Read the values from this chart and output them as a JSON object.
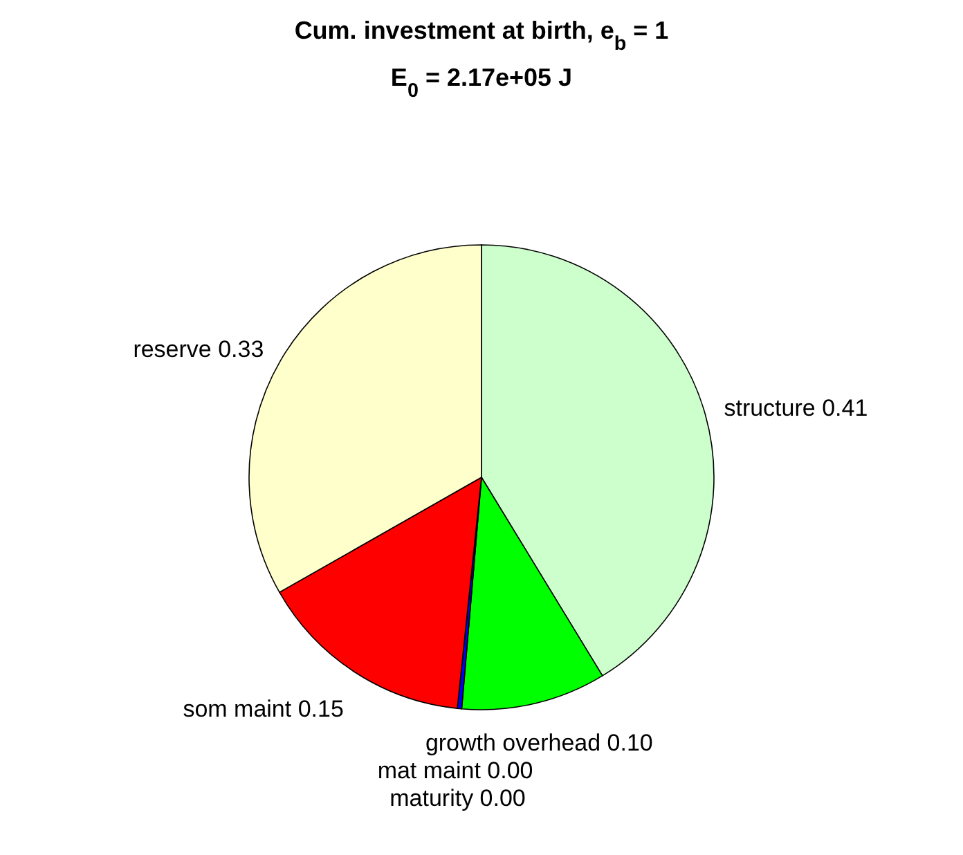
{
  "chart_data": {
    "type": "pie",
    "title": "Cum. investment at birth, e$_{b}$ = 1",
    "subtitle": "E$_{0}$ = 2.17e+05 J",
    "categories": [
      "structure",
      "growth overhead",
      "maturity",
      "mat maint",
      "som maint",
      "reserve"
    ],
    "values": [
      0.41,
      0.1,
      0.003,
      0.0,
      0.15,
      0.33
    ],
    "value_labels": [
      "0.41",
      "0.10",
      "0.00",
      "0.00",
      "0.15",
      "0.33"
    ],
    "colors": [
      "#ccffcc",
      "#00ff00",
      "#0000ff",
      "#ff00ff",
      "#ff0000",
      "#ffffcc"
    ]
  }
}
